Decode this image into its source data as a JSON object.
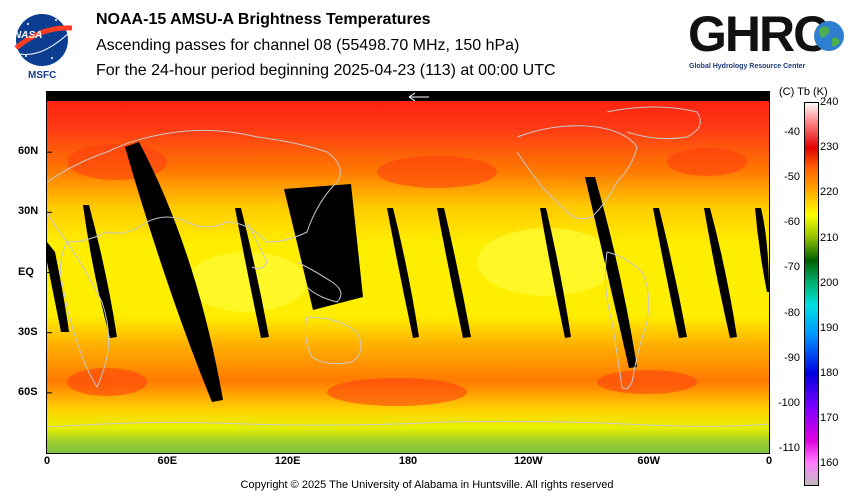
{
  "title": {
    "line1": "NOAA-15 AMSU-A Brightness Temperatures",
    "line2": "Ascending passes for channel 08 (55498.70 MHz, 150 hPa)",
    "line3": "For the 24-hour period beginning 2025-04-23 (113) at 00:00 UTC"
  },
  "logos": {
    "left_badge_text": "NASA",
    "left_caption": "MSFC",
    "right_text": "GHRC",
    "right_caption": "Global Hydrology Resource Center"
  },
  "map": {
    "lat_ticks": [
      {
        "label": "60N",
        "lat": 60
      },
      {
        "label": "30N",
        "lat": 30
      },
      {
        "label": "EQ",
        "lat": 0
      },
      {
        "label": "30S",
        "lat": -30
      },
      {
        "label": "60S",
        "lat": -60
      }
    ],
    "lon_ticks": [
      {
        "label": "0",
        "lon": 0
      },
      {
        "label": "60E",
        "lon": 60
      },
      {
        "label": "120E",
        "lon": 120
      },
      {
        "label": "180",
        "lon": 180
      },
      {
        "label": "120W",
        "lon": 240
      },
      {
        "label": "60W",
        "lon": 300
      },
      {
        "label": "0",
        "lon": 360
      }
    ],
    "colors": {
      "no_data": "#000000",
      "coastlines": "#c8c8c8",
      "polar_north": "#ee2a1a",
      "midlat": "#ff9a00",
      "tropics": "#ffee00",
      "south_high_lat": "#90cc30"
    }
  },
  "colorbar": {
    "header": "(C)  Tb  (K)",
    "celsius_labels": [
      "-40",
      "-50",
      "-60",
      "-70",
      "-80",
      "-90",
      "-100",
      "-110"
    ],
    "kelvin_labels": [
      "240",
      "230",
      "220",
      "210",
      "200",
      "190",
      "180",
      "170",
      "160"
    ],
    "kelvin_range": [
      155,
      240
    ],
    "stops": [
      {
        "k": 240,
        "color": "#ffffff"
      },
      {
        "k": 236,
        "color": "#ff9090"
      },
      {
        "k": 230,
        "color": "#e00000"
      },
      {
        "k": 225,
        "color": "#ff6a00"
      },
      {
        "k": 220,
        "color": "#ffb000"
      },
      {
        "k": 215,
        "color": "#ffff00"
      },
      {
        "k": 210,
        "color": "#90c000"
      },
      {
        "k": 205,
        "color": "#006000"
      },
      {
        "k": 200,
        "color": "#00b070"
      },
      {
        "k": 195,
        "color": "#00e0e0"
      },
      {
        "k": 188,
        "color": "#0090ff"
      },
      {
        "k": 180,
        "color": "#0000e0"
      },
      {
        "k": 172,
        "color": "#8000ff"
      },
      {
        "k": 165,
        "color": "#e000e0"
      },
      {
        "k": 160,
        "color": "#ff80ff"
      },
      {
        "k": 155,
        "color": "#bbbbbb"
      }
    ]
  },
  "footer": {
    "copyright": "Copyright © 2025 The University of Alabama in Huntsville.  All rights reserved"
  }
}
